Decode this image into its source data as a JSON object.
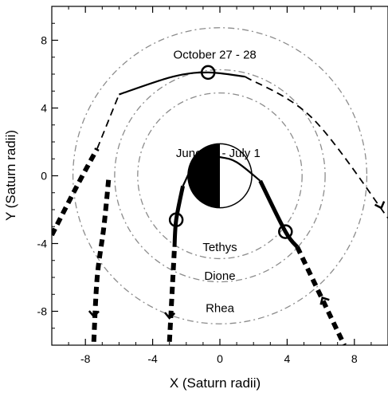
{
  "chart_data": {
    "type": "line",
    "title": "",
    "xlabel": "X (Saturn radii)",
    "ylabel": "Y (Saturn radii)",
    "xlim": [
      -10,
      10
    ],
    "ylim": [
      -10,
      10
    ],
    "grid": false,
    "x_ticks": [
      -8,
      -4,
      0,
      4,
      8
    ],
    "y_ticks": [
      8,
      4,
      0,
      -4,
      -8
    ],
    "saturn": {
      "center": [
        0,
        0
      ],
      "radius": 1,
      "dark_side": "left"
    },
    "moon_orbits": [
      {
        "name": "Tethys",
        "radius": 4.89,
        "label_at": [
          0,
          -4.2
        ]
      },
      {
        "name": "Dione",
        "radius": 6.26,
        "label_at": [
          0,
          -5.9
        ]
      },
      {
        "name": "Rhea",
        "radius": 8.74,
        "label_at": [
          0,
          -7.8
        ]
      }
    ],
    "series": [
      {
        "name": "",
        "label": "October 27 - 28",
        "label_at": [
          -0.3,
          7.2
        ],
        "closest_approach_marker": [
          -0.7,
          6.1
        ],
        "points": [
          [
            -10,
            -3.5
          ],
          [
            -6,
            4.8
          ],
          [
            -0.7,
            6.1
          ],
          [
            5.5,
            3.4
          ],
          [
            10,
            -2.5
          ]
        ],
        "inbound_arrow_at": [
          9.5,
          -1.9
        ],
        "segments": [
          {
            "style": "thick-dash",
            "points": [
              [
                -10,
                -3.5
              ],
              [
                -8.5,
                -0.6
              ],
              [
                -7.3,
                1.6
              ]
            ]
          },
          {
            "style": "dash",
            "points": [
              [
                -7.3,
                1.6
              ],
              [
                -6,
                4.8
              ]
            ]
          },
          {
            "style": "solid",
            "points": [
              [
                -6,
                4.8
              ],
              [
                -2.8,
                5.85
              ],
              [
                -0.7,
                6.1
              ],
              [
                1.5,
                5.85
              ]
            ]
          },
          {
            "style": "dash",
            "points": [
              [
                1.5,
                5.85
              ],
              [
                5.5,
                3.4
              ],
              [
                10,
                -2.5
              ]
            ]
          }
        ]
      },
      {
        "name": "",
        "label": "June 30 - July 1",
        "label_at": [
          -0.1,
          1.4
        ],
        "closest_approach_markers": [
          [
            -2.6,
            -2.6
          ],
          [
            3.9,
            -3.3
          ]
        ],
        "points": [
          [
            -3.0,
            -9.8
          ],
          [
            -2.6,
            -2.6
          ],
          [
            -1.2,
            1.2
          ],
          [
            1.0,
            0.8
          ],
          [
            3.9,
            -3.3
          ],
          [
            7.4,
            -10
          ]
        ],
        "arrows_at": [
          [
            -3.0,
            -8.4
          ],
          [
            6.1,
            -7.3
          ]
        ],
        "segments": [
          {
            "style": "thick-dash",
            "points": [
              [
                -3.0,
                -9.8
              ],
              [
                -2.7,
                -4.2
              ]
            ]
          },
          {
            "style": "thick",
            "points": [
              [
                -2.7,
                -4.2
              ],
              [
                -2.6,
                -2.6
              ],
              [
                -2.2,
                -0.6
              ]
            ]
          },
          {
            "style": "solid",
            "points": [
              [
                -2.2,
                -0.6
              ],
              [
                -1.2,
                1.2
              ],
              [
                0,
                1.1
              ],
              [
                1.0,
                0.8
              ],
              [
                2.4,
                -0.3
              ]
            ]
          },
          {
            "style": "thick",
            "points": [
              [
                2.4,
                -0.3
              ],
              [
                3.9,
                -3.3
              ],
              [
                4.6,
                -4.2
              ]
            ]
          },
          {
            "style": "thick-dash",
            "points": [
              [
                4.6,
                -4.2
              ],
              [
                7.4,
                -10
              ]
            ]
          }
        ]
      },
      {
        "name": "",
        "points": [
          [
            -7.5,
            -9.8
          ],
          [
            -6.9,
            -3.0
          ],
          [
            -6.6,
            0.0
          ]
        ],
        "arrows_at": [
          [
            -7.5,
            -8.4
          ]
        ],
        "segments": [
          {
            "style": "thick-dash",
            "points": [
              [
                -7.5,
                -9.8
              ],
              [
                -7.3,
                -6.0
              ],
              [
                -6.9,
                -3.0
              ],
              [
                -6.6,
                0.0
              ]
            ]
          }
        ]
      }
    ]
  }
}
